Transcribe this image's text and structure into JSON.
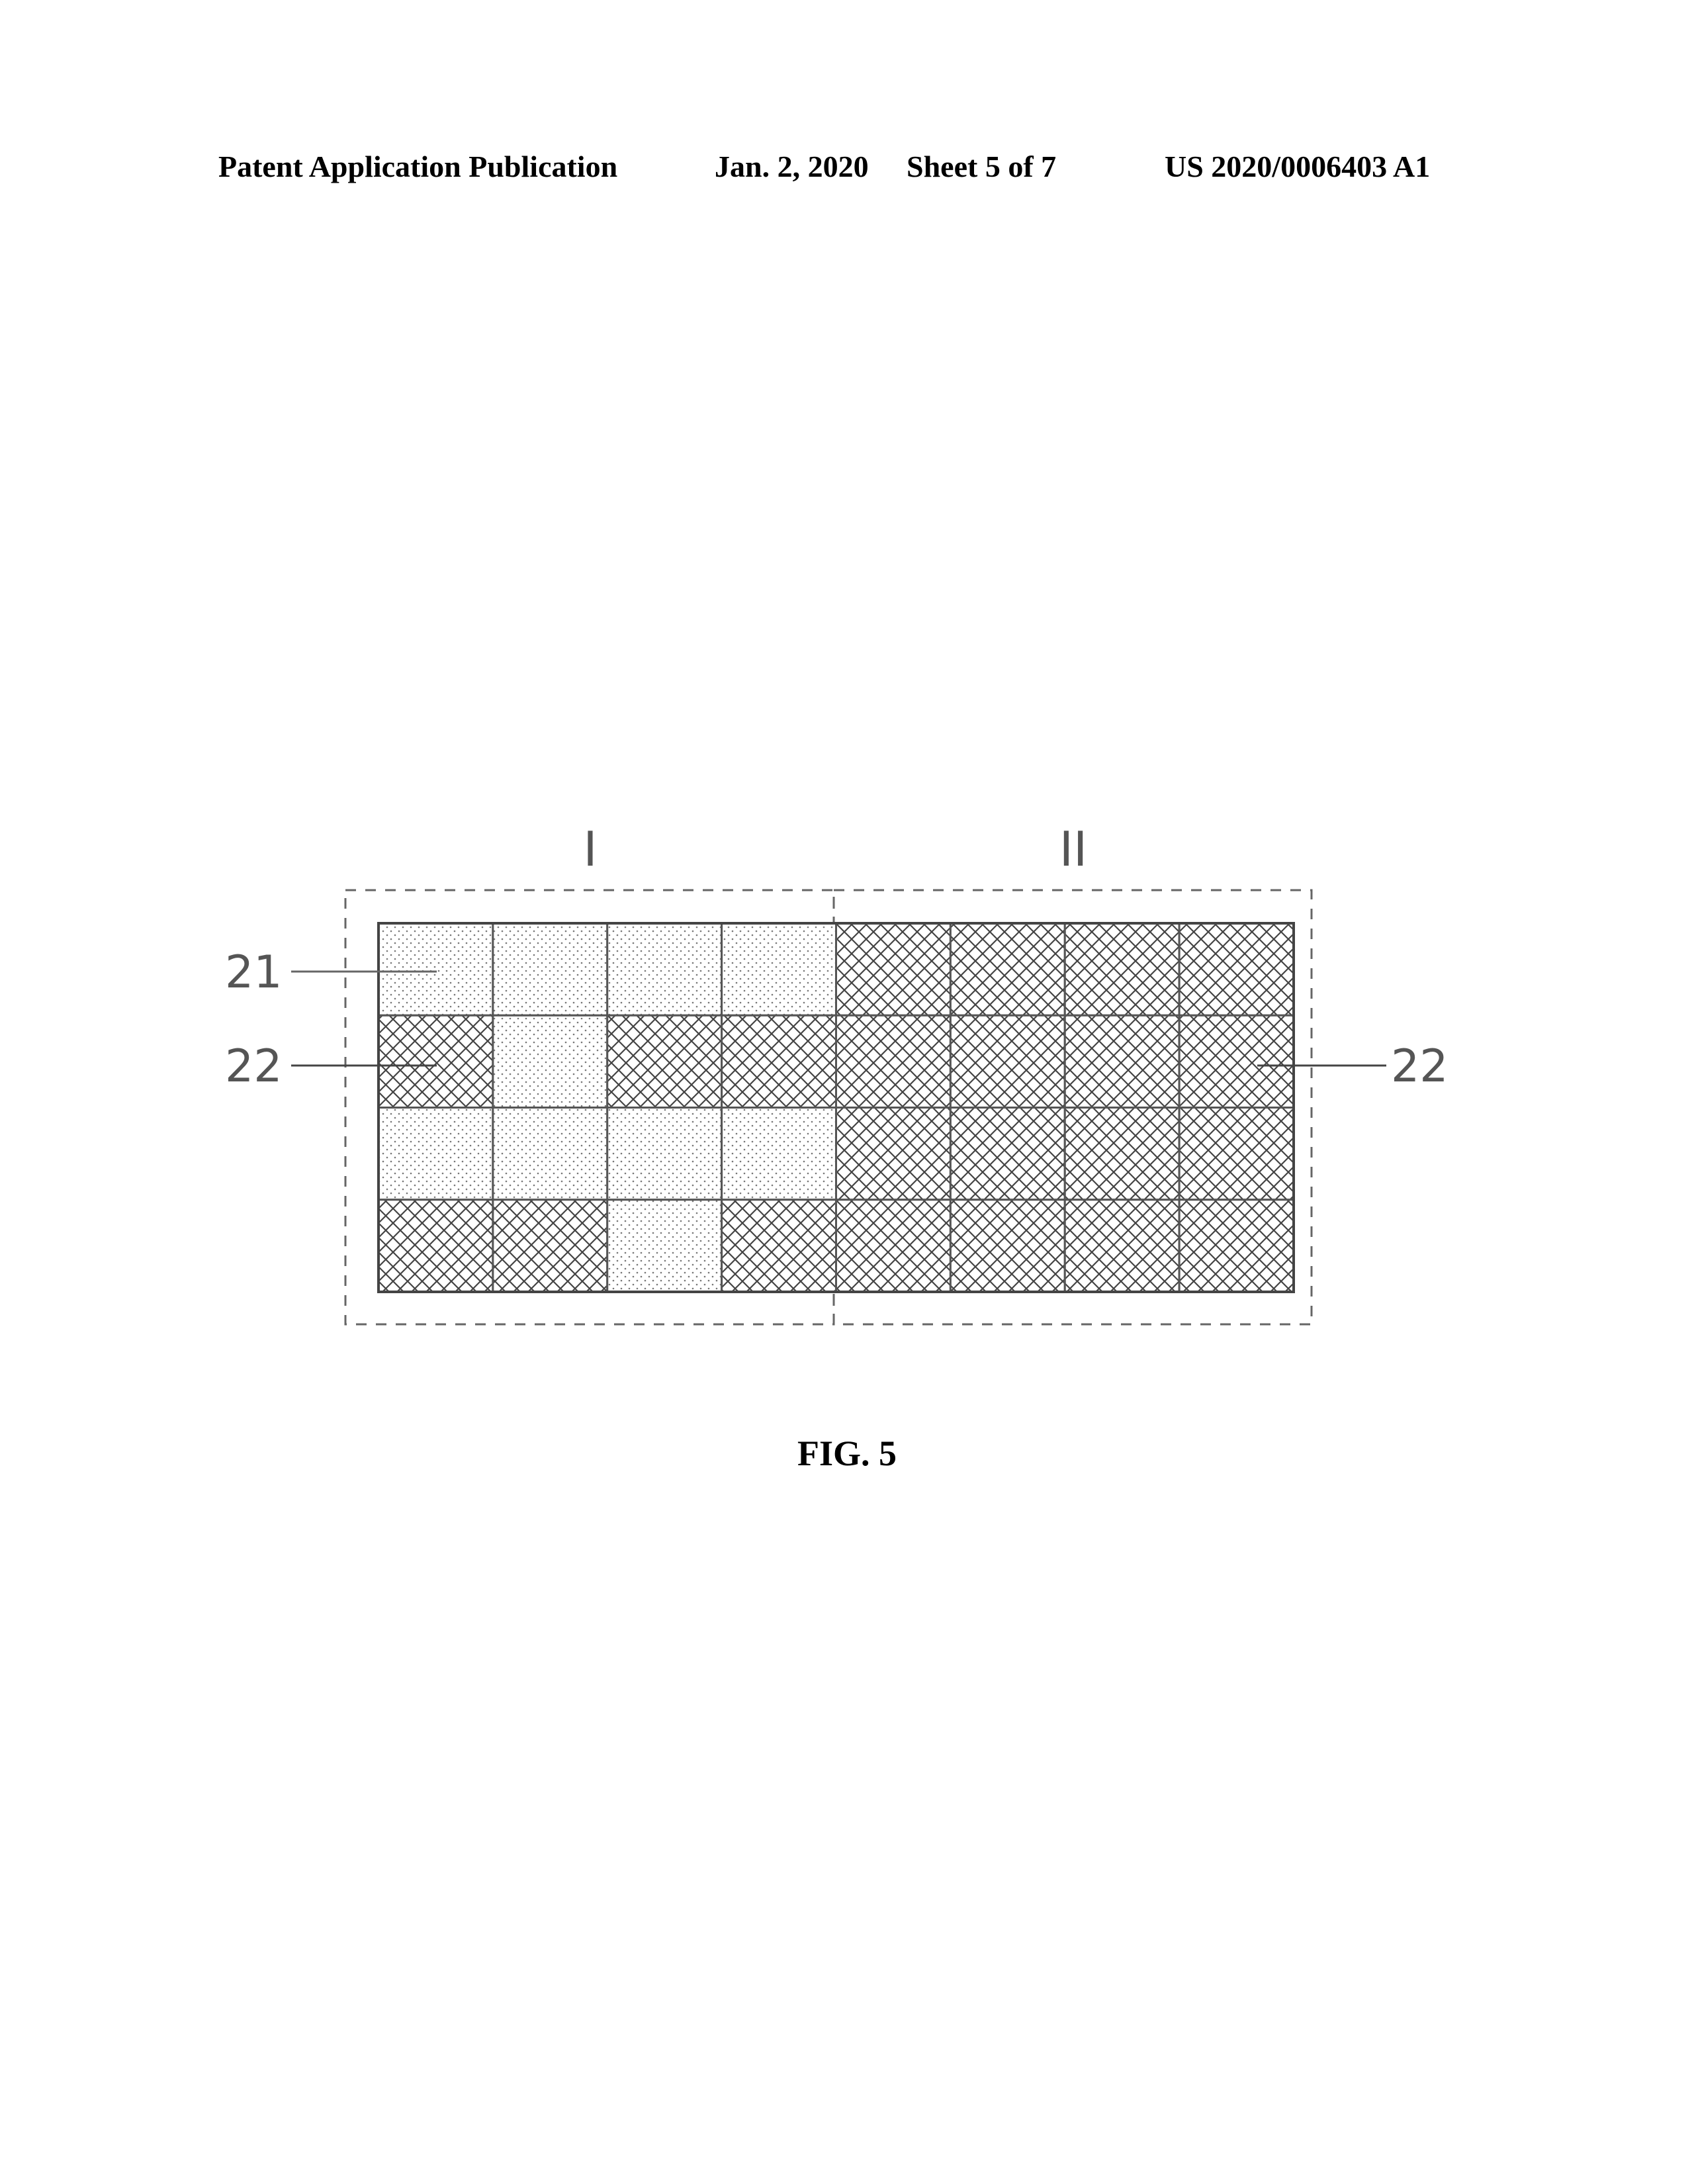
{
  "header": {
    "publication": "Patent Application Publication",
    "date": "Jan. 2, 2020",
    "sheet": "Sheet 5 of 7",
    "number": "US 2020/0006403 A1"
  },
  "figure": {
    "caption": "FIG. 5",
    "region_labels": [
      "I",
      "II"
    ],
    "callouts": {
      "left_top": "21",
      "left_mid": "22",
      "right_mid": "22"
    },
    "grid": {
      "rows": 4,
      "cols": 8,
      "pattern_legend": {
        "D": "dotted",
        "X": "cross-hatched"
      },
      "cells": [
        [
          "D",
          "D",
          "D",
          "D",
          "X",
          "X",
          "X",
          "X"
        ],
        [
          "X",
          "D",
          "X",
          "X",
          "X",
          "X",
          "X",
          "X"
        ],
        [
          "D",
          "D",
          "D",
          "D",
          "X",
          "X",
          "X",
          "X"
        ],
        [
          "X",
          "X",
          "D",
          "X",
          "X",
          "X",
          "X",
          "X"
        ]
      ]
    }
  }
}
